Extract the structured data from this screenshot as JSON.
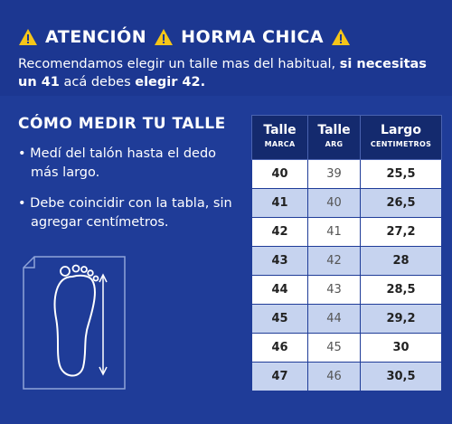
{
  "header": {
    "title": [
      "ATENCIÓN",
      "HORMA CHICA"
    ],
    "text": [
      "Recomendamos elegir un talle mas del habitual, ",
      "si necesitas un 41",
      " acá debes ",
      "elegir 42."
    ]
  },
  "measure": {
    "title": "CÓMO MEDIR TU TALLE",
    "bullets": [
      "Medí del talón hasta el dedo más largo.",
      "Debe coincidir con la tabla, sin agregar centímetros."
    ]
  },
  "table": {
    "columns": [
      {
        "label": "Talle",
        "sub": "MARCA"
      },
      {
        "label": "Talle",
        "sub": "ARG"
      },
      {
        "label": "Largo",
        "sub": "CENTIMETROS"
      }
    ],
    "rows": [
      [
        "40",
        "39",
        "25,5"
      ],
      [
        "41",
        "40",
        "26,5"
      ],
      [
        "42",
        "41",
        "27,2"
      ],
      [
        "43",
        "42",
        "28"
      ],
      [
        "44",
        "43",
        "28,5"
      ],
      [
        "45",
        "44",
        "29,2"
      ],
      [
        "46",
        "45",
        "30"
      ],
      [
        "47",
        "46",
        "30,5"
      ]
    ]
  }
}
